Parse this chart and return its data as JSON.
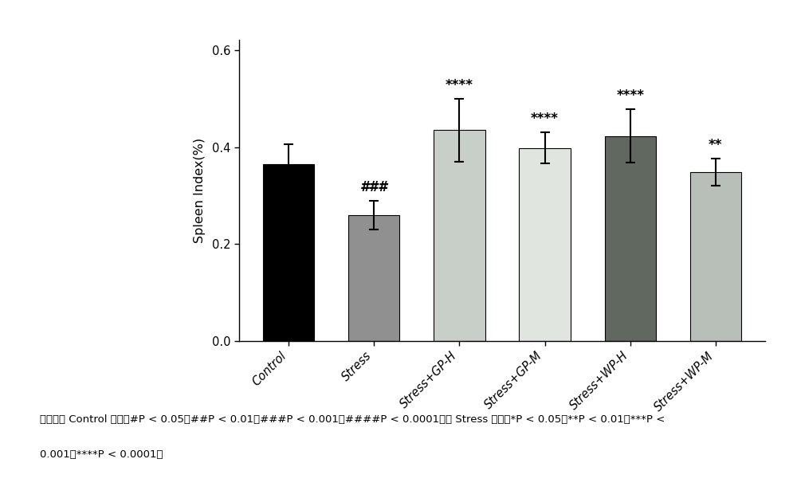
{
  "categories": [
    "Control",
    "Stress",
    "Stress+GP-H",
    "Stress+GP-M",
    "Stress+WP-H",
    "Stress+WP-M"
  ],
  "values": [
    0.365,
    0.26,
    0.435,
    0.398,
    0.423,
    0.348
  ],
  "errors": [
    0.04,
    0.03,
    0.065,
    0.032,
    0.055,
    0.028
  ],
  "bar_colors": [
    "#000000",
    "#909090",
    "#c8cfc8",
    "#e0e5e0",
    "#606860",
    "#b8beb8"
  ],
  "ylabel": "Spleen Index(%)",
  "ylim": [
    0.0,
    0.62
  ],
  "yticks": [
    0.0,
    0.2,
    0.4,
    0.6
  ],
  "above_annotations": [
    {
      "bar_idx": 1,
      "text": "###",
      "fontsize": 12
    },
    {
      "bar_idx": 2,
      "text": "****",
      "fontsize": 12
    },
    {
      "bar_idx": 3,
      "text": "****",
      "fontsize": 12
    },
    {
      "bar_idx": 4,
      "text": "****",
      "fontsize": 12
    },
    {
      "bar_idx": 5,
      "text": "**",
      "fontsize": 12
    }
  ],
  "note_line1": "（注：与 Control 相比，#P < 0.05，##P < 0.01，###P < 0.001，####P < 0.0001；与 Stress 相比，*P < 0.05，**P < 0.01，***P <",
  "note_line2": "0.001，****P < 0.0001）",
  "bar_width": 0.6,
  "figsize": [
    10.0,
    6.3
  ],
  "dpi": 100
}
